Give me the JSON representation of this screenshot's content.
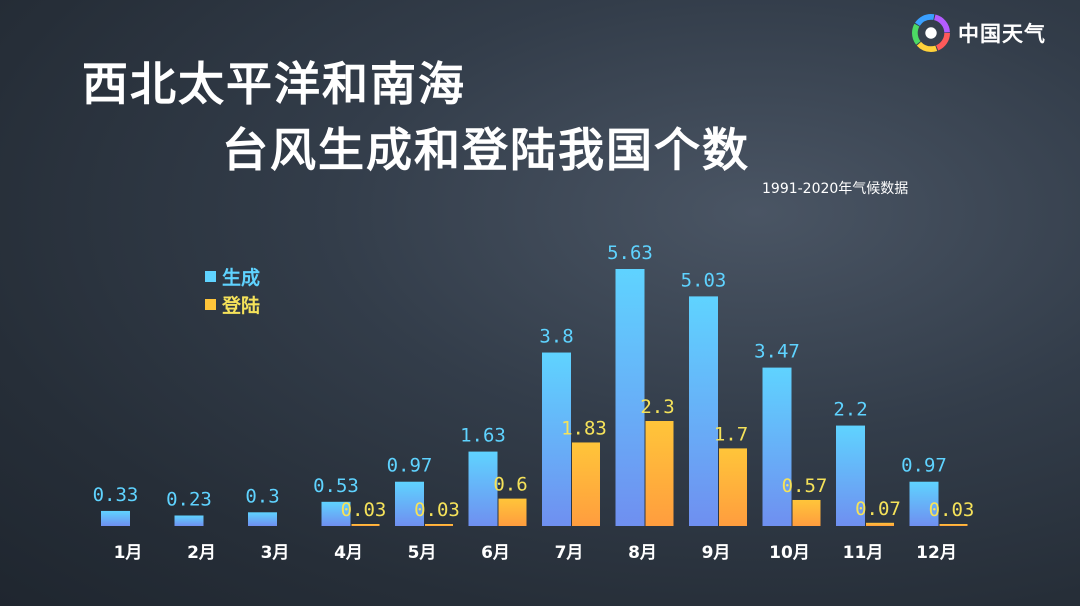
{
  "brand": {
    "name": "中国天气"
  },
  "title_lines": [
    "西北太平洋和南海",
    "台风生成和登陆我国个数"
  ],
  "subtitle": "1991-2020年气候数据",
  "colors": {
    "formation_top": "#5fd3ff",
    "formation_bottom": "#6f8ff0",
    "landfall_top": "#ffc53a",
    "landfall_bottom": "#ff9d3e",
    "formation_label": "#5fd3ff",
    "landfall_label": "#f5e25a"
  },
  "chart_data": {
    "type": "bar",
    "categories": [
      "1月",
      "2月",
      "3月",
      "4月",
      "5月",
      "6月",
      "7月",
      "8月",
      "9月",
      "10月",
      "11月",
      "12月"
    ],
    "series": [
      {
        "name": "生成",
        "values": [
          0.33,
          0.23,
          0.3,
          0.53,
          0.97,
          1.63,
          3.8,
          5.63,
          5.03,
          3.47,
          2.2,
          0.97
        ]
      },
      {
        "name": "登陆",
        "values": [
          null,
          null,
          null,
          0.03,
          0.03,
          0.6,
          1.83,
          2.3,
          1.7,
          0.57,
          0.07,
          0.03
        ]
      }
    ],
    "ylim": [
      0,
      5.63
    ],
    "grid": false,
    "legend": "top-left"
  }
}
